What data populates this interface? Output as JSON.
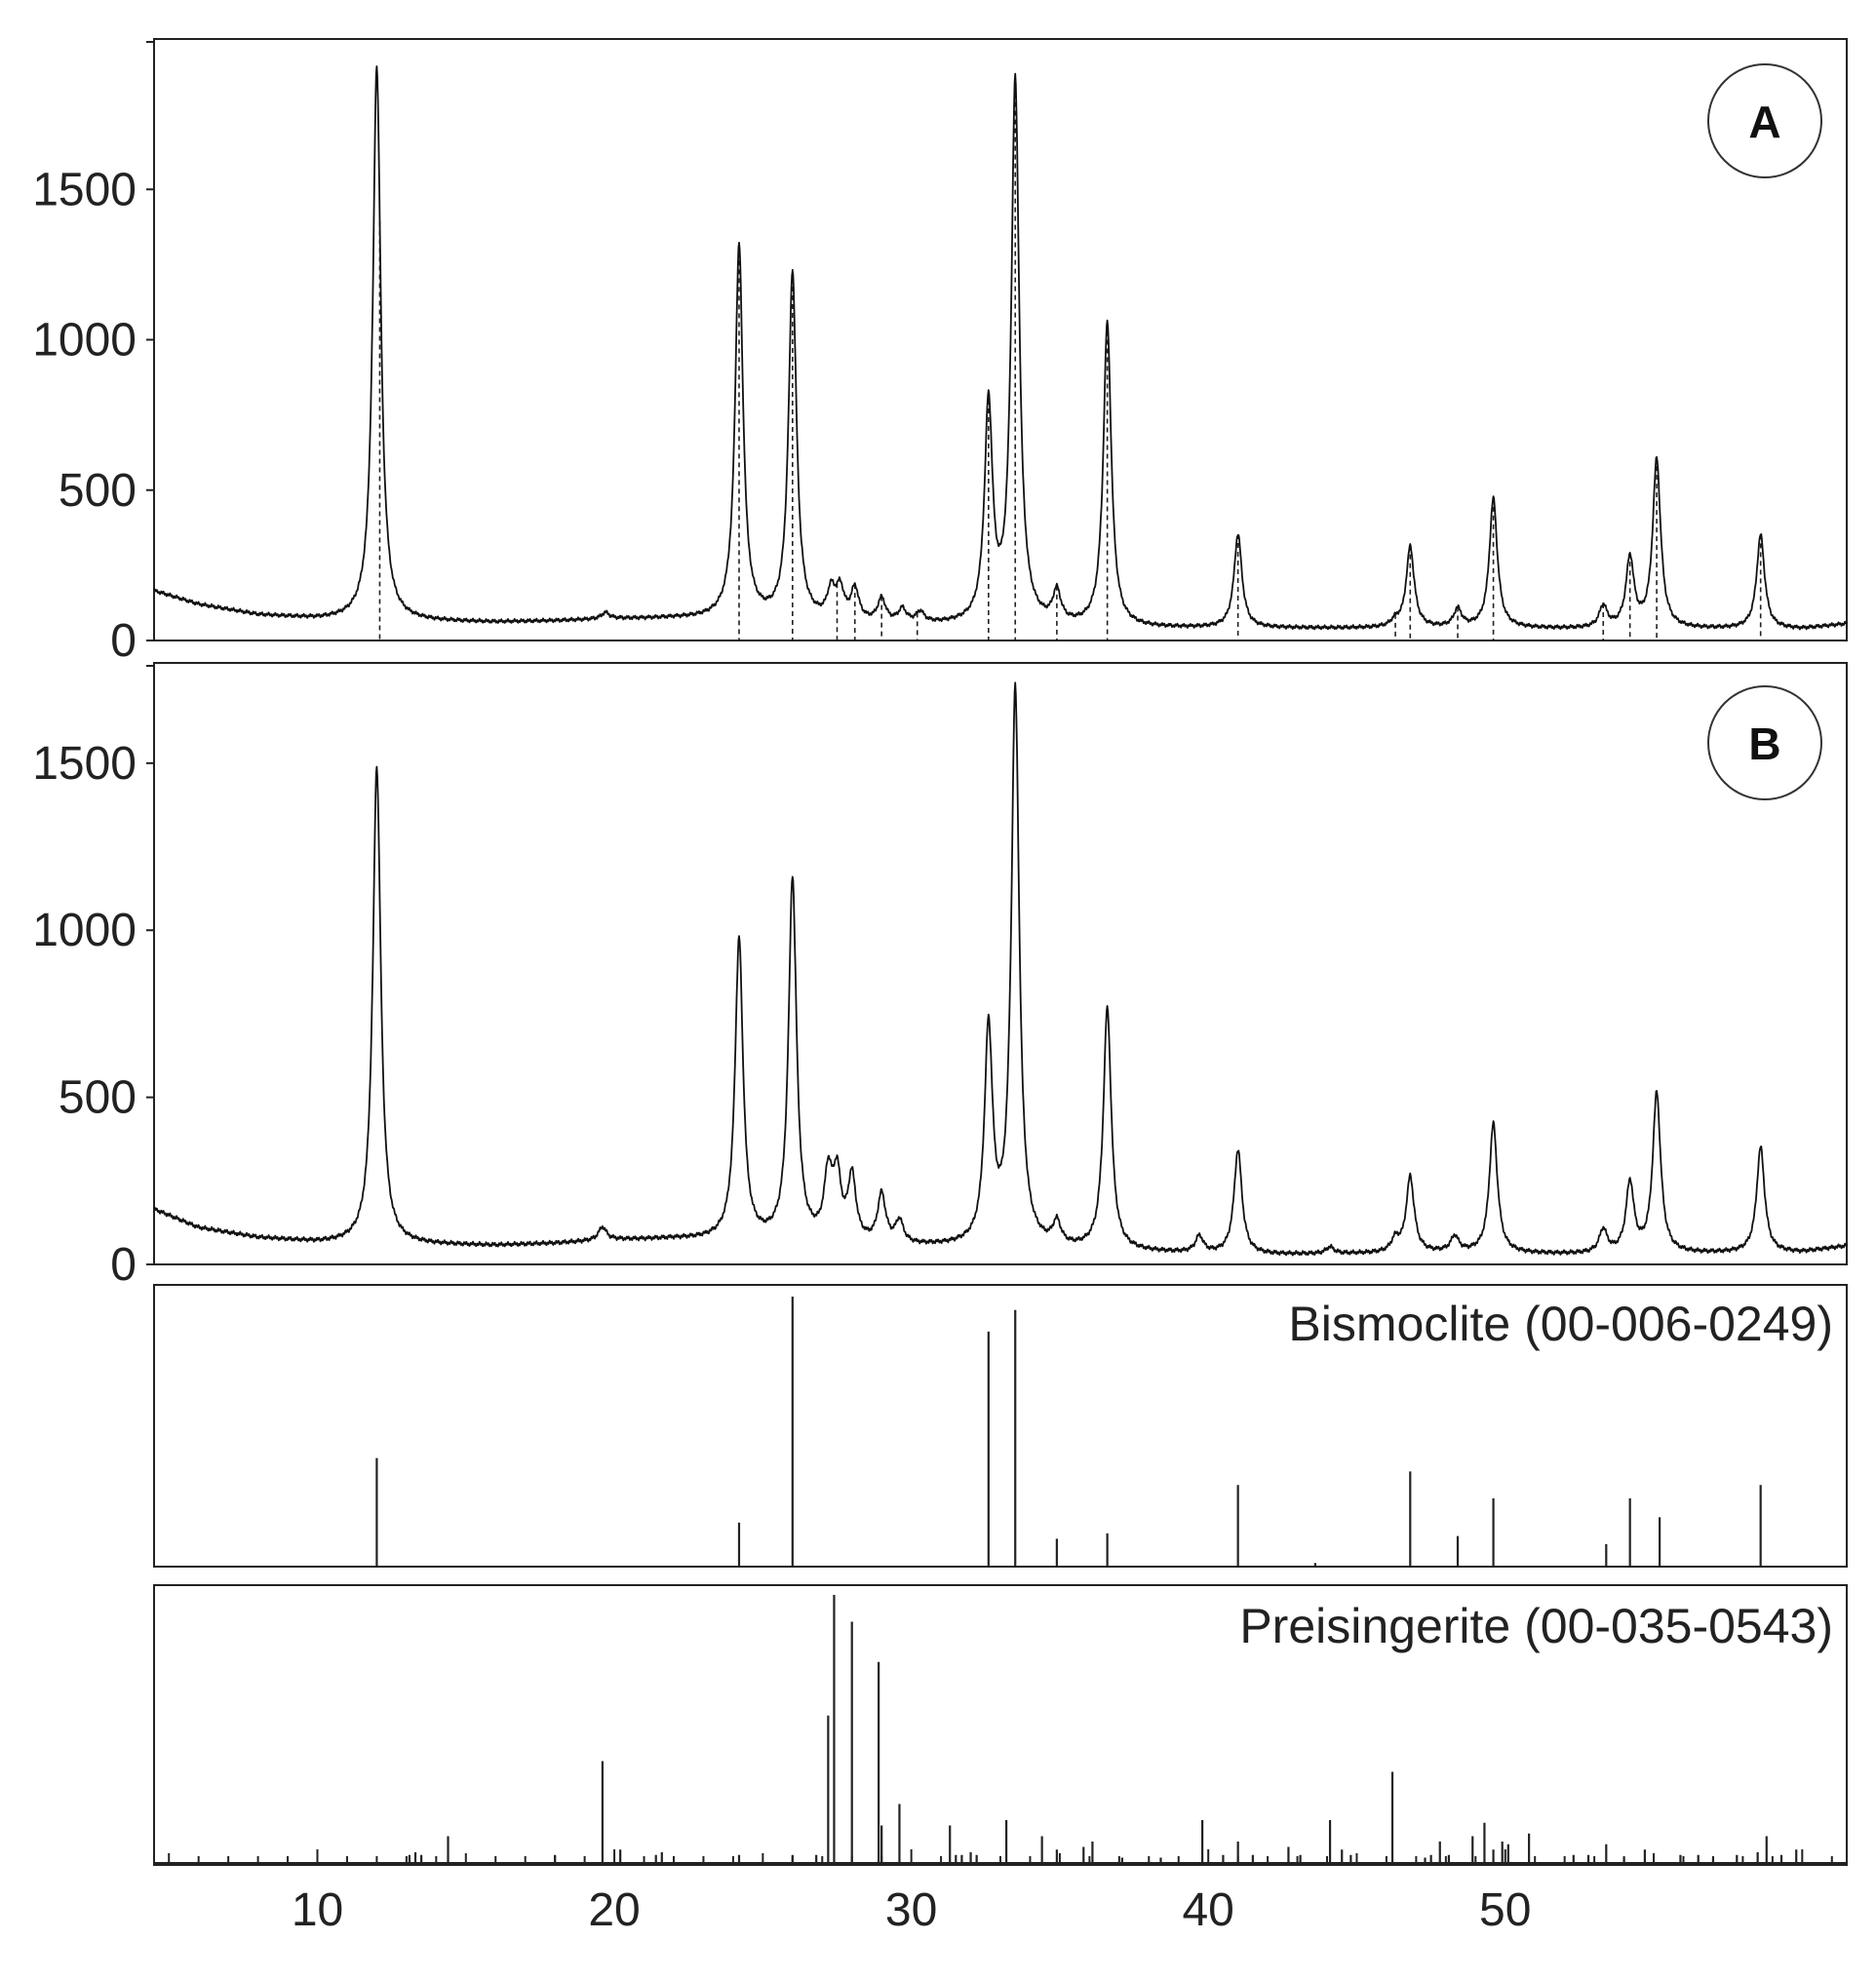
{
  "chart_data": [
    {
      "type": "line",
      "panel_label": "A",
      "y_ticks": [
        "0",
        "500",
        "1000",
        "1500"
      ],
      "ylim": [
        0,
        2000
      ],
      "xlim": [
        4.5,
        61.5
      ],
      "background": [
        [
          4.5,
          165
        ],
        [
          6,
          120
        ],
        [
          8,
          85
        ],
        [
          10,
          70
        ],
        [
          12,
          64
        ],
        [
          14,
          62
        ],
        [
          16,
          60
        ],
        [
          18,
          64
        ],
        [
          20,
          70
        ],
        [
          22,
          72
        ],
        [
          24,
          68
        ],
        [
          26,
          62
        ],
        [
          28,
          56
        ],
        [
          30,
          50
        ],
        [
          32,
          48
        ],
        [
          34,
          45
        ],
        [
          36,
          42
        ],
        [
          38,
          40
        ],
        [
          40,
          40
        ],
        [
          42,
          40
        ],
        [
          44,
          40
        ],
        [
          46,
          40
        ],
        [
          48,
          40
        ],
        [
          50,
          40
        ],
        [
          52,
          38
        ],
        [
          54,
          38
        ],
        [
          56,
          38
        ],
        [
          58,
          38
        ],
        [
          60,
          38
        ],
        [
          61.5,
          55
        ]
      ],
      "peaks": [
        {
          "x": 12.0,
          "y": 1910
        },
        {
          "x": 19.7,
          "y": 90
        },
        {
          "x": 24.2,
          "y": 1310
        },
        {
          "x": 26.0,
          "y": 1220
        },
        {
          "x": 27.3,
          "y": 150
        },
        {
          "x": 27.6,
          "y": 155
        },
        {
          "x": 28.1,
          "y": 160
        },
        {
          "x": 29.0,
          "y": 130
        },
        {
          "x": 29.7,
          "y": 95
        },
        {
          "x": 30.3,
          "y": 85
        },
        {
          "x": 32.6,
          "y": 770
        },
        {
          "x": 33.5,
          "y": 1850
        },
        {
          "x": 34.9,
          "y": 145
        },
        {
          "x": 36.6,
          "y": 1050
        },
        {
          "x": 41.0,
          "y": 350
        },
        {
          "x": 46.3,
          "y": 60
        },
        {
          "x": 46.8,
          "y": 310
        },
        {
          "x": 48.4,
          "y": 100
        },
        {
          "x": 49.6,
          "y": 470
        },
        {
          "x": 53.3,
          "y": 110
        },
        {
          "x": 54.2,
          "y": 270
        },
        {
          "x": 55.1,
          "y": 600
        },
        {
          "x": 58.6,
          "y": 350
        }
      ],
      "dashed_positions": [
        12.1,
        24.2,
        26.0,
        27.5,
        28.1,
        29.0,
        30.2,
        32.6,
        33.5,
        34.9,
        36.6,
        41.0,
        46.3,
        46.8,
        48.4,
        49.6,
        53.3,
        54.2,
        55.1,
        58.6
      ]
    },
    {
      "type": "line",
      "panel_label": "B",
      "y_ticks": [
        "0",
        "500",
        "1000",
        "1500"
      ],
      "ylim": [
        0,
        1800
      ],
      "xlim": [
        4.5,
        61.5
      ],
      "background": [
        [
          4.5,
          165
        ],
        [
          6,
          110
        ],
        [
          8,
          80
        ],
        [
          10,
          65
        ],
        [
          12,
          60
        ],
        [
          14,
          58
        ],
        [
          16,
          56
        ],
        [
          18,
          62
        ],
        [
          20,
          72
        ],
        [
          22,
          75
        ],
        [
          24,
          70
        ],
        [
          26,
          65
        ],
        [
          28,
          58
        ],
        [
          30,
          52
        ],
        [
          32,
          50
        ],
        [
          34,
          46
        ],
        [
          36,
          40
        ],
        [
          38,
          35
        ],
        [
          40,
          30
        ],
        [
          42,
          28
        ],
        [
          44,
          30
        ],
        [
          46,
          32
        ],
        [
          48,
          34
        ],
        [
          50,
          32
        ],
        [
          52,
          30
        ],
        [
          54,
          30
        ],
        [
          56,
          32
        ],
        [
          58,
          34
        ],
        [
          60,
          36
        ],
        [
          61.5,
          55
        ]
      ],
      "peaks": [
        {
          "x": 12.0,
          "y": 1490
        },
        {
          "x": 19.6,
          "y": 110
        },
        {
          "x": 24.2,
          "y": 970
        },
        {
          "x": 26.0,
          "y": 1150
        },
        {
          "x": 27.2,
          "y": 250
        },
        {
          "x": 27.5,
          "y": 245
        },
        {
          "x": 28.0,
          "y": 250
        },
        {
          "x": 29.0,
          "y": 200
        },
        {
          "x": 29.6,
          "y": 120
        },
        {
          "x": 32.6,
          "y": 690
        },
        {
          "x": 33.5,
          "y": 1710
        },
        {
          "x": 34.9,
          "y": 110
        },
        {
          "x": 36.6,
          "y": 760
        },
        {
          "x": 39.7,
          "y": 80
        },
        {
          "x": 41.0,
          "y": 340
        },
        {
          "x": 44.1,
          "y": 50
        },
        {
          "x": 46.3,
          "y": 70
        },
        {
          "x": 46.8,
          "y": 260
        },
        {
          "x": 48.3,
          "y": 80
        },
        {
          "x": 49.6,
          "y": 420
        },
        {
          "x": 53.3,
          "y": 100
        },
        {
          "x": 54.2,
          "y": 240
        },
        {
          "x": 55.1,
          "y": 510
        },
        {
          "x": 58.6,
          "y": 350
        }
      ]
    },
    {
      "type": "bar",
      "name": "Bismoclite (00-006-0249)",
      "ylim": [
        0,
        100
      ],
      "x": [
        12.0,
        24.2,
        26.0,
        32.6,
        33.5,
        34.9,
        36.6,
        41.0,
        43.6,
        46.8,
        48.4,
        49.6,
        53.4,
        54.2,
        55.2,
        58.6
      ],
      "values": [
        40,
        16,
        100,
        87,
        95,
        10,
        12,
        30,
        1,
        35,
        11,
        25,
        8,
        25,
        18,
        30
      ]
    },
    {
      "type": "bar",
      "name": "Preisingerite (00-035-0543)",
      "ylim": [
        0,
        100
      ],
      "x": [
        13.1,
        13.3,
        13.5,
        14.4,
        18.0,
        19.6,
        20.2,
        21.4,
        21.6,
        24.2,
        26.0,
        26.8,
        27.2,
        27.4,
        28.0,
        28.9,
        29.0,
        29.6,
        31.3,
        31.5,
        31.7,
        32.0,
        32.2,
        33.2,
        34.4,
        34.9,
        35.8,
        36.1,
        37.1,
        38.4,
        39.8,
        40.5,
        41.0,
        41.5,
        42.7,
        43.1,
        44.1,
        44.5,
        44.8,
        46.2,
        47.3,
        47.5,
        47.8,
        48.1,
        48.9,
        49.3,
        49.6,
        49.9,
        50.1,
        50.8,
        52.3,
        52.8,
        53.4,
        54.0,
        54.7,
        55.9,
        56.5,
        57.0,
        57.8,
        58.5,
        58.8,
        59.3,
        59.8
      ],
      "values": [
        3,
        4,
        3,
        10,
        3,
        38,
        5,
        3,
        4,
        3,
        3,
        3,
        55,
        100,
        90,
        75,
        14,
        22,
        14,
        3,
        3,
        4,
        3,
        16,
        10,
        5,
        6,
        8,
        2,
        2,
        16,
        3,
        8,
        3,
        6,
        3,
        16,
        5,
        3,
        34,
        2,
        3,
        8,
        3,
        10,
        15,
        5,
        8,
        7,
        11,
        3,
        3,
        7,
        2,
        5,
        3,
        3,
        2,
        3,
        4,
        10,
        3,
        5
      ]
    }
  ],
  "x_axis": {
    "tick_labels": [
      "10",
      "20",
      "30",
      "40",
      "50"
    ]
  }
}
